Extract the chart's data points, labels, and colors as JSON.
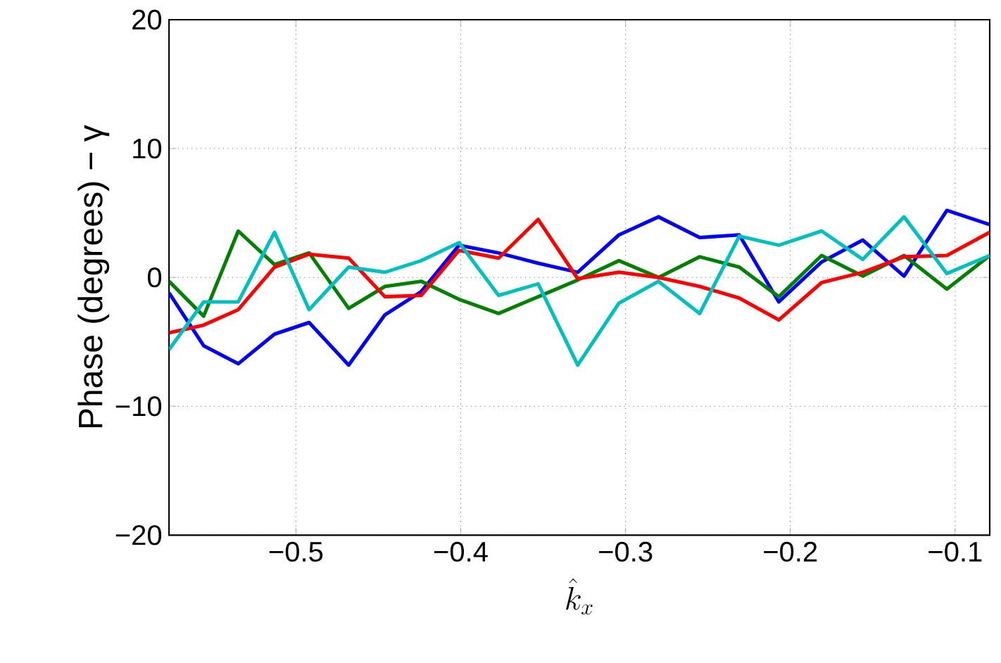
{
  "chart_data": {
    "type": "line",
    "xlabel": "\\hat{k}_x",
    "ylabel": "Phase (degrees) − γ",
    "x": [
      -0.577,
      -0.556,
      -0.535,
      -0.513,
      -0.492,
      -0.468,
      -0.446,
      -0.424,
      -0.401,
      -0.377,
      -0.353,
      -0.329,
      -0.304,
      -0.28,
      -0.255,
      -0.231,
      -0.207,
      -0.181,
      -0.156,
      -0.131,
      -0.105,
      -0.079
    ],
    "series": [
      {
        "color": "#0000ff",
        "values": [
          -1.2,
          -5.3,
          -6.7,
          -4.4,
          -3.5,
          -6.8,
          -2.9,
          -1.1,
          2.5,
          1.9,
          1.1,
          0.4,
          3.3,
          4.7,
          3.1,
          3.3,
          -1.9,
          1.2,
          2.9,
          0.1,
          5.2,
          4.1
        ]
      },
      {
        "color": "#008000",
        "values": [
          -0.3,
          -3.0,
          3.6,
          1.0,
          1.9,
          -2.4,
          -0.7,
          -0.3,
          -1.7,
          -2.8,
          -1.5,
          -0.2,
          1.3,
          0,
          1.6,
          0.8,
          -1.5,
          1.7,
          0.1,
          1.7,
          -0.9,
          1.7
        ]
      },
      {
        "color": "#ff0000",
        "values": [
          -4.3,
          -3.7,
          -2.5,
          0.8,
          1.8,
          1.5,
          -1.5,
          -1.4,
          2.1,
          1.5,
          4.5,
          -0.1,
          0.4,
          0,
          -0.7,
          -1.6,
          -3.3,
          -0.4,
          0.4,
          1.6,
          1.7,
          3.5
        ]
      },
      {
        "color": "#00bfbf",
        "values": [
          -5.6,
          -1.9,
          -1.9,
          3.5,
          -2.5,
          0.8,
          0.4,
          1.3,
          2.7,
          -1.4,
          -0.5,
          -6.8,
          -2.0,
          -0.3,
          -2.8,
          3.2,
          2.5,
          3.6,
          1.4,
          4.7,
          0.3,
          1.7
        ]
      }
    ],
    "xlim": [
      -0.577,
      -0.079
    ],
    "ylim": [
      -20,
      20
    ],
    "xticks": [
      {
        "value": -0.5,
        "label": "−0.5"
      },
      {
        "value": -0.4,
        "label": "−0.4"
      },
      {
        "value": -0.3,
        "label": "−0.3"
      },
      {
        "value": -0.2,
        "label": "−0.2"
      },
      {
        "value": -0.1,
        "label": "−0.1"
      }
    ],
    "yticks": [
      {
        "value": -20,
        "label": "−20"
      },
      {
        "value": -10,
        "label": "−10"
      },
      0,
      10,
      20
    ],
    "grid": true,
    "line_style": "solid",
    "marker": "none"
  }
}
